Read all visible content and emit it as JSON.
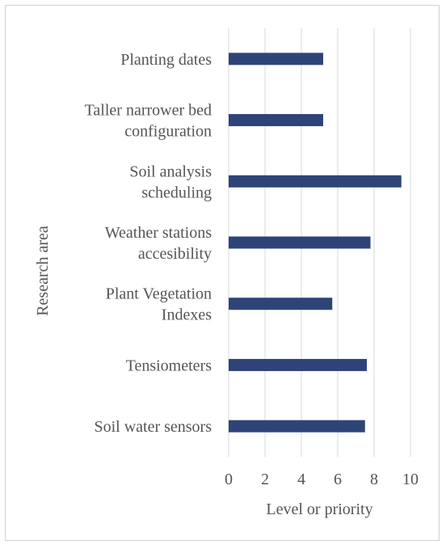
{
  "chart_data": {
    "type": "bar",
    "orientation": "horizontal",
    "title": "",
    "xlabel": "Level or priority",
    "ylabel": "Research area",
    "xlim": [
      0,
      10
    ],
    "x_ticks": [
      0,
      2,
      4,
      6,
      8,
      10
    ],
    "grid": "vertical",
    "legend": "none",
    "bar_color": "#2E4478",
    "grid_color": "#D9D9D9",
    "text_color": "#555555",
    "categories": [
      [
        "Planting dates"
      ],
      [
        "Taller narrower bed",
        "configuration"
      ],
      [
        "Soil analysis",
        "scheduling"
      ],
      [
        "Weather stations",
        "accesibility"
      ],
      [
        "Plant Vegetation",
        "Indexes"
      ],
      [
        "Tensiometers"
      ],
      [
        "Soil water sensors"
      ]
    ],
    "values": [
      5.2,
      5.2,
      9.5,
      7.8,
      5.7,
      7.6,
      7.5
    ]
  }
}
